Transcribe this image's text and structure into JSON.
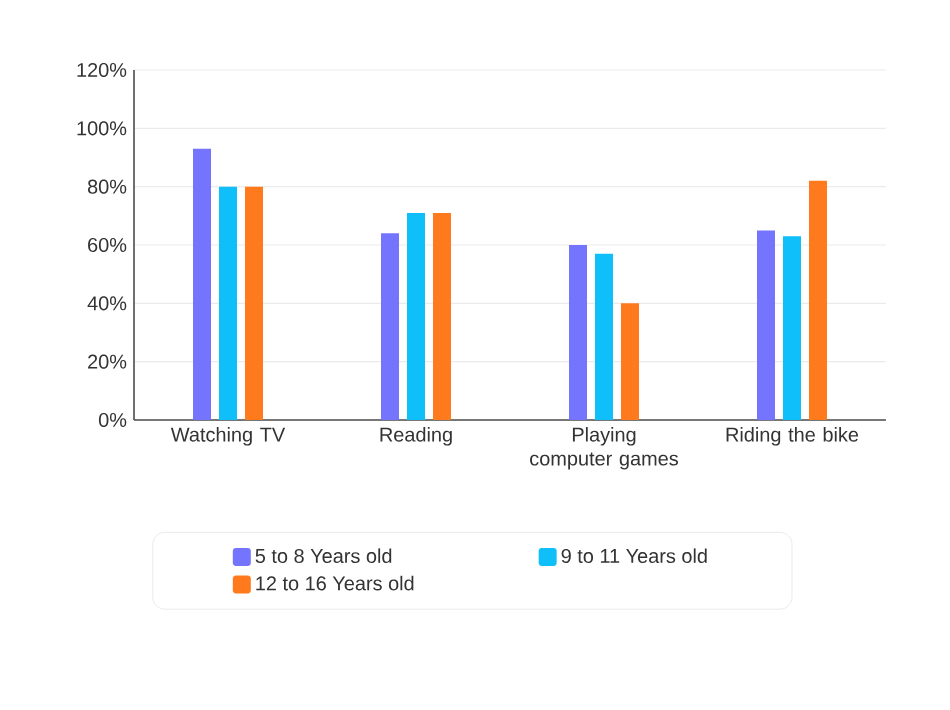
{
  "chart_data": {
    "type": "bar",
    "categories": [
      "Watching TV",
      "Reading",
      "Playing computer games",
      "Riding the bike"
    ],
    "series": [
      {
        "name": "5 to 8 Years old",
        "color": "#7474ff",
        "values": [
          93,
          64,
          60,
          65
        ]
      },
      {
        "name": "9 to 11 Years old",
        "color": "#0fbff9",
        "values": [
          80,
          71,
          57,
          63
        ]
      },
      {
        "name": "12 to 16 Years old",
        "color": "#ff7a1d",
        "values": [
          80,
          71,
          40,
          82
        ]
      }
    ],
    "ylim": [
      0,
      120
    ],
    "yticks": [
      {
        "value": 0,
        "label": "0%"
      },
      {
        "value": 20,
        "label": "20%"
      },
      {
        "value": 40,
        "label": "40%"
      },
      {
        "value": 60,
        "label": "60%"
      },
      {
        "value": 80,
        "label": "80%"
      },
      {
        "value": 100,
        "label": "100%"
      },
      {
        "value": 120,
        "label": "120%"
      }
    ],
    "grid": "y",
    "legend": "bottom"
  }
}
